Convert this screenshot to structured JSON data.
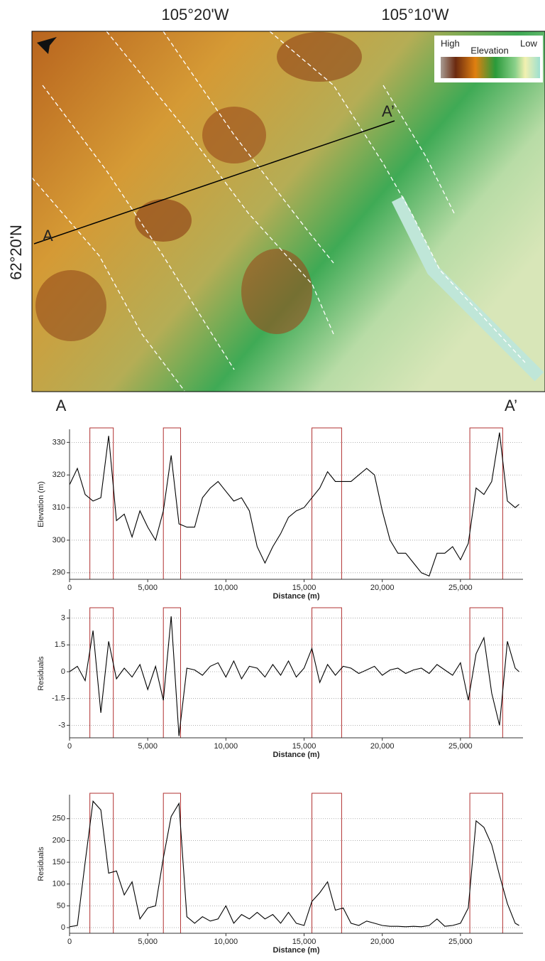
{
  "map": {
    "lon_labels": [
      "105°20'W",
      "105°10'W"
    ],
    "lat_label": "62°20'N",
    "legend": {
      "high": "High",
      "title": "Elevation",
      "low": "Low"
    },
    "start_label": "A",
    "end_label": "A’"
  },
  "profile": {
    "start_label": "A",
    "end_label": "A’"
  },
  "chart_data": [
    {
      "type": "line",
      "y_label": "Elevation (m)",
      "x_label": "Distance (m)",
      "color": "#000000",
      "grid": true,
      "highlight_color": "#b03030",
      "highlights": [
        [
          1300,
          2800
        ],
        [
          6000,
          7100
        ],
        [
          15500,
          17400
        ],
        [
          25600,
          27700
        ]
      ],
      "xlim": [
        0,
        29000
      ],
      "xticks": [
        0,
        {
          "value": 5000,
          "label": "5,000"
        },
        {
          "value": 10000,
          "label": "10,000"
        },
        {
          "value": 15000,
          "label": "15,000"
        },
        {
          "value": 20000,
          "label": "20,000"
        },
        {
          "value": 25000,
          "label": "25,000"
        }
      ],
      "ylim": [
        288,
        334
      ],
      "yticks": [
        290,
        300,
        310,
        320,
        330
      ],
      "x": [
        0,
        500,
        1000,
        1500,
        2000,
        2500,
        3000,
        3500,
        4000,
        4500,
        5000,
        5500,
        6000,
        6500,
        7000,
        7500,
        8000,
        8500,
        9000,
        9500,
        10000,
        10500,
        11000,
        11500,
        12000,
        12500,
        13000,
        13500,
        14000,
        14500,
        15000,
        15500,
        16000,
        16500,
        17000,
        17500,
        18000,
        18500,
        19000,
        19500,
        20000,
        20500,
        21000,
        21500,
        22000,
        22500,
        23000,
        23500,
        24000,
        24500,
        25000,
        25500,
        26000,
        26500,
        27000,
        27500,
        28000,
        28500,
        28750
      ],
      "values": [
        317,
        322,
        314,
        312,
        313,
        332,
        306,
        308,
        301,
        309,
        304,
        300,
        309,
        326,
        305,
        304,
        304,
        313,
        316,
        318,
        315,
        312,
        313,
        309,
        298,
        293,
        298,
        302,
        307,
        309,
        310,
        313,
        316,
        321,
        318,
        318,
        318,
        320,
        322,
        320,
        309,
        300,
        296,
        296,
        293,
        290,
        289,
        296,
        296,
        298,
        294,
        299,
        316,
        314,
        318,
        333,
        312,
        310,
        311
      ]
    },
    {
      "type": "line",
      "y_label": "Residuals",
      "x_label": "Distance (m)",
      "color": "#000000",
      "grid": true,
      "highlight_color": "#b03030",
      "highlights": [
        [
          1300,
          2800
        ],
        [
          6000,
          7100
        ],
        [
          15500,
          17400
        ],
        [
          25600,
          27700
        ]
      ],
      "xlim": [
        0,
        29000
      ],
      "xticks": [
        0,
        {
          "value": 5000,
          "label": "5,000"
        },
        {
          "value": 10000,
          "label": "10,000"
        },
        {
          "value": 15000,
          "label": "15,000"
        },
        {
          "value": 20000,
          "label": "20,000"
        },
        {
          "value": 25000,
          "label": "25,000"
        }
      ],
      "ylim": [
        -3.7,
        3.5
      ],
      "yticks": [
        -3,
        -1.5,
        0,
        1.5,
        3
      ],
      "x": [
        0,
        500,
        1000,
        1500,
        2000,
        2500,
        3000,
        3500,
        4000,
        4500,
        5000,
        5500,
        6000,
        6500,
        7000,
        7500,
        8000,
        8500,
        9000,
        9500,
        10000,
        10500,
        11000,
        11500,
        12000,
        12500,
        13000,
        13500,
        14000,
        14500,
        15000,
        15500,
        16000,
        16500,
        17000,
        17500,
        18000,
        18500,
        19000,
        19500,
        20000,
        20500,
        21000,
        21500,
        22000,
        22500,
        23000,
        23500,
        24000,
        24500,
        25000,
        25500,
        26000,
        26500,
        27000,
        27500,
        28000,
        28500,
        28750
      ],
      "values": [
        0,
        0.3,
        -0.5,
        2.3,
        -2.3,
        1.7,
        -0.4,
        0.2,
        -0.3,
        0.4,
        -1.0,
        0.3,
        -1.6,
        3.1,
        -3.6,
        0.2,
        0.1,
        -0.2,
        0.3,
        0.5,
        -0.3,
        0.6,
        -0.4,
        0.3,
        0.2,
        -0.3,
        0.4,
        -0.2,
        0.6,
        -0.3,
        0.2,
        1.3,
        -0.6,
        0.4,
        -0.2,
        0.3,
        0.2,
        -0.1,
        0.1,
        0.3,
        -0.2,
        0.1,
        0.2,
        -0.1,
        0.1,
        0.2,
        -0.1,
        0.4,
        0.1,
        -0.2,
        0.5,
        -1.6,
        1.0,
        1.9,
        -1.2,
        -3.0,
        1.7,
        0.2,
        0
      ]
    },
    {
      "type": "line",
      "y_label": "Residuals",
      "x_label": "Distance (m)",
      "color": "#000000",
      "grid": true,
      "highlight_color": "#b03030",
      "highlights": [
        [
          1300,
          2800
        ],
        [
          6000,
          7100
        ],
        [
          15500,
          17400
        ],
        [
          25600,
          27700
        ]
      ],
      "xlim": [
        0,
        29000
      ],
      "xticks": [
        0,
        {
          "value": 5000,
          "label": "5,000"
        },
        {
          "value": 10000,
          "label": "10,000"
        },
        {
          "value": 15000,
          "label": "15,000"
        },
        {
          "value": 20000,
          "label": "20,000"
        },
        {
          "value": 25000,
          "label": "25,000"
        }
      ],
      "ylim": [
        -13,
        305
      ],
      "yticks": [
        0,
        50,
        100,
        150,
        200,
        250
      ],
      "x": [
        0,
        500,
        1000,
        1500,
        2000,
        2500,
        3000,
        3500,
        4000,
        4500,
        5000,
        5500,
        6000,
        6500,
        7000,
        7500,
        8000,
        8500,
        9000,
        9500,
        10000,
        10500,
        11000,
        11500,
        12000,
        12500,
        13000,
        13500,
        14000,
        14500,
        15000,
        15500,
        16000,
        16500,
        17000,
        17500,
        18000,
        18500,
        19000,
        19500,
        20000,
        20500,
        21000,
        21500,
        22000,
        22500,
        23000,
        23500,
        24000,
        24500,
        25000,
        25500,
        26000,
        26500,
        27000,
        27500,
        28000,
        28500,
        28750
      ],
      "values": [
        2,
        5,
        150,
        290,
        270,
        125,
        130,
        75,
        105,
        20,
        45,
        50,
        160,
        255,
        285,
        25,
        10,
        25,
        15,
        20,
        50,
        10,
        30,
        20,
        35,
        20,
        30,
        10,
        35,
        10,
        5,
        60,
        80,
        105,
        40,
        45,
        10,
        5,
        15,
        10,
        5,
        3,
        3,
        2,
        3,
        2,
        5,
        20,
        3,
        5,
        10,
        45,
        245,
        230,
        190,
        120,
        55,
        10,
        5
      ]
    }
  ]
}
